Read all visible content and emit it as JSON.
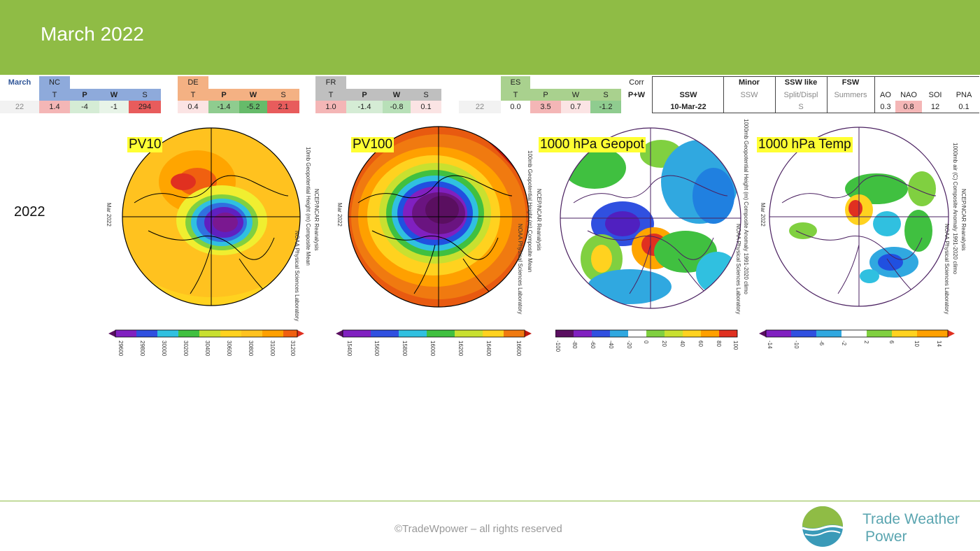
{
  "header": {
    "title": "March 2022"
  },
  "table": {
    "march_label": "March",
    "row_label": "22",
    "nc": {
      "name": "NC",
      "t": "T",
      "p": "P",
      "w": "W",
      "s": "S",
      "vt": "1.4",
      "vp": "-4",
      "vw": "-1",
      "vs": "294"
    },
    "de": {
      "name": "DE",
      "t": "T",
      "p": "P",
      "w": "W",
      "s": "S",
      "vt": "0.4",
      "vp": "-1.4",
      "vw": "-5.2",
      "vs": "2.1"
    },
    "fr": {
      "name": "FR",
      "t": "T",
      "p": "P",
      "w": "W",
      "s": "S",
      "vt": "1.0",
      "vp": "-1.4",
      "vw": "-0.8",
      "vs": "0.1"
    },
    "es_row_label": "22",
    "es": {
      "name": "ES",
      "t": "T",
      "p": "P",
      "w": "W",
      "s": "S",
      "vt": "0.0",
      "vp": "3.5",
      "vw": "0.7",
      "vs": "-1.2"
    },
    "corr": "Corr",
    "pw": "P+W",
    "ssw": {
      "head": "SSW",
      "value": "10-Mar-22"
    },
    "minor": {
      "head": "Minor",
      "sub": "SSW",
      "value": ""
    },
    "ssw_like": {
      "head": "SSW like",
      "sub": "Split/Displ",
      "value": "S"
    },
    "fsw": {
      "head": "FSW",
      "sub": "Summers",
      "value": ""
    },
    "ao": {
      "head": "AO",
      "value": "0.3"
    },
    "nao": {
      "head": "NAO",
      "value": "0.8"
    },
    "soi": {
      "head": "SOI",
      "value": "12"
    },
    "pna": {
      "head": "PNA",
      "value": "0.1"
    }
  },
  "year_label": "2022",
  "maps": [
    {
      "label": "PV10",
      "date": "Mar 2022",
      "side1": "10mb Geopotential Height (m) Composite Mean",
      "side2": "NCEP/NCAR Reanalysis",
      "side3": "NOAA Physical Sciences Laboratory",
      "ticks": [
        "29600",
        "29800",
        "30000",
        "30200",
        "30400",
        "30600",
        "30800",
        "31000",
        "31200"
      ]
    },
    {
      "label": "PV100",
      "date": "Mar 2022",
      "side1": "100mb Geopotential Height (m) Composite Mean",
      "side2": "NCEP/NCAR Reanalysis",
      "side3": "NOAA Physical Sciences Laboratory",
      "ticks": [
        "15400",
        "15600",
        "15800",
        "16000",
        "16200",
        "16400",
        "16600"
      ]
    },
    {
      "label": "1000 hPa Geopot",
      "date": "",
      "side1": "1000mb Geopotential Height (m) Composite Anomaly 1991-2020 climo",
      "side2": "NCEP/NCAR Reanalysis",
      "side3": "NOAA Physical Sciences Laboratory",
      "ticks": [
        "-100",
        "-80",
        "-60",
        "-40",
        "-20",
        "0",
        "20",
        "40",
        "60",
        "80",
        "100"
      ]
    },
    {
      "label": "1000 hPa Temp",
      "date": "Mar 2022",
      "side1": "1000mb air (C) Composite Anomaly 1991-2020 climo",
      "side2": "NCEP/NCAR Reanalysis",
      "side3": "NOAA Physical Sciences Laboratory",
      "ticks": [
        "-14",
        "-10",
        "-6",
        "-2",
        "2",
        "6",
        "10",
        "14"
      ]
    }
  ],
  "colors": {
    "header": "#8fbc45",
    "nc": "#8eaadb",
    "de": "#f4b183",
    "fr": "#bfbfbf",
    "es": "#a9d18e"
  },
  "footer": {
    "copyright": "©TradeWpower – all rights reserved",
    "logo_line1": "Trade Weather",
    "logo_line2": "Power"
  }
}
